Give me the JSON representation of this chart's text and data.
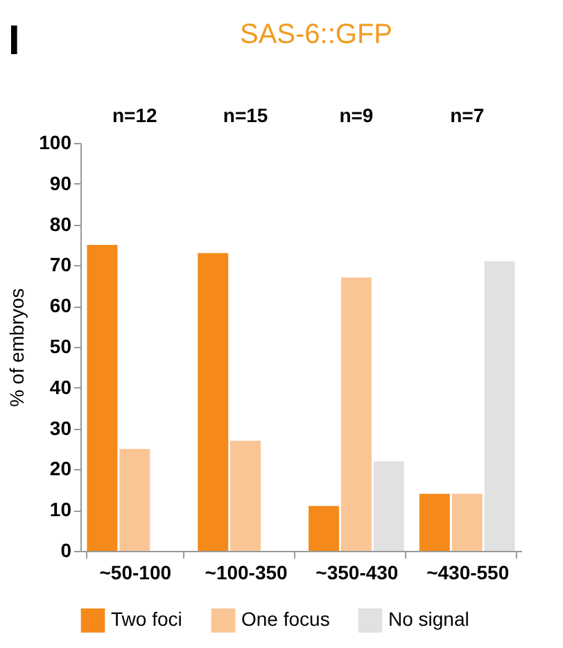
{
  "chart_data": {
    "type": "bar",
    "title": "SAS-6::GFP",
    "ylabel": "% of embryos",
    "categories": [
      "~50-100",
      "~100-350",
      "~350-430",
      "~430-550"
    ],
    "series": [
      {
        "name": "Two foci",
        "color": "#f58a1a",
        "values": [
          75,
          73,
          11,
          14
        ]
      },
      {
        "name": "One focus",
        "color": "#fac595",
        "values": [
          25,
          27,
          67,
          14
        ]
      },
      {
        "name": "No signal",
        "color": "#e1e1e1",
        "values": [
          0,
          0,
          22,
          71
        ]
      }
    ],
    "ylim": [
      0,
      100
    ],
    "yticks": [
      0,
      10,
      20,
      30,
      40,
      50,
      60,
      70,
      80,
      90,
      100
    ],
    "grid": false,
    "legend": "bottom",
    "annotations": [
      "I",
      "n=12",
      "n=15",
      "n=9",
      "n=7"
    ]
  }
}
